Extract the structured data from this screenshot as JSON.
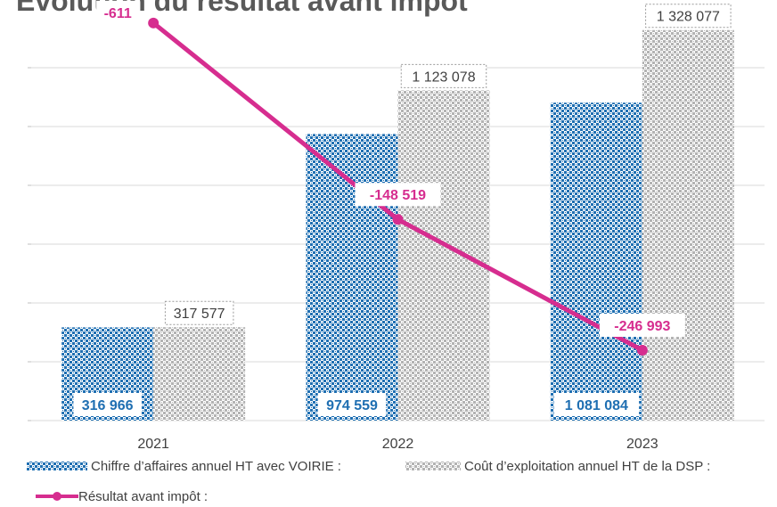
{
  "chart_data": {
    "type": "bar",
    "title": "Évolution du résultat avant impôt",
    "categories": [
      "2021",
      "2022",
      "2023"
    ],
    "series": [
      {
        "name": "Chiffre d’affaires annuel HT avec VOIRIE :",
        "color": "#1f6fb2",
        "values": [
          316966,
          974559,
          1081084
        ],
        "value_labels": [
          "316 966",
          "974 559",
          "1 081 084"
        ]
      },
      {
        "name": "Coût d’exploitation annuel HT de la DSP :",
        "color": "#b3b3b3",
        "values": [
          317577,
          1123078,
          1328077
        ],
        "value_labels": [
          "317 577",
          "1 123 078",
          "1 328 077"
        ]
      },
      {
        "name": "Résultat avant impôt :",
        "type": "line",
        "axis": "y2",
        "color": "#d62d8f",
        "values": [
          -611,
          -148519,
          -246993
        ],
        "value_labels": [
          "-611",
          "-148 519",
          "-246 993"
        ]
      }
    ],
    "ylim": [
      0,
      1400000
    ],
    "yticks": [
      0,
      200000,
      400000,
      600000,
      800000,
      1000000,
      1200000
    ],
    "y2lim": [
      -300000,
      10000
    ],
    "grid": true
  }
}
